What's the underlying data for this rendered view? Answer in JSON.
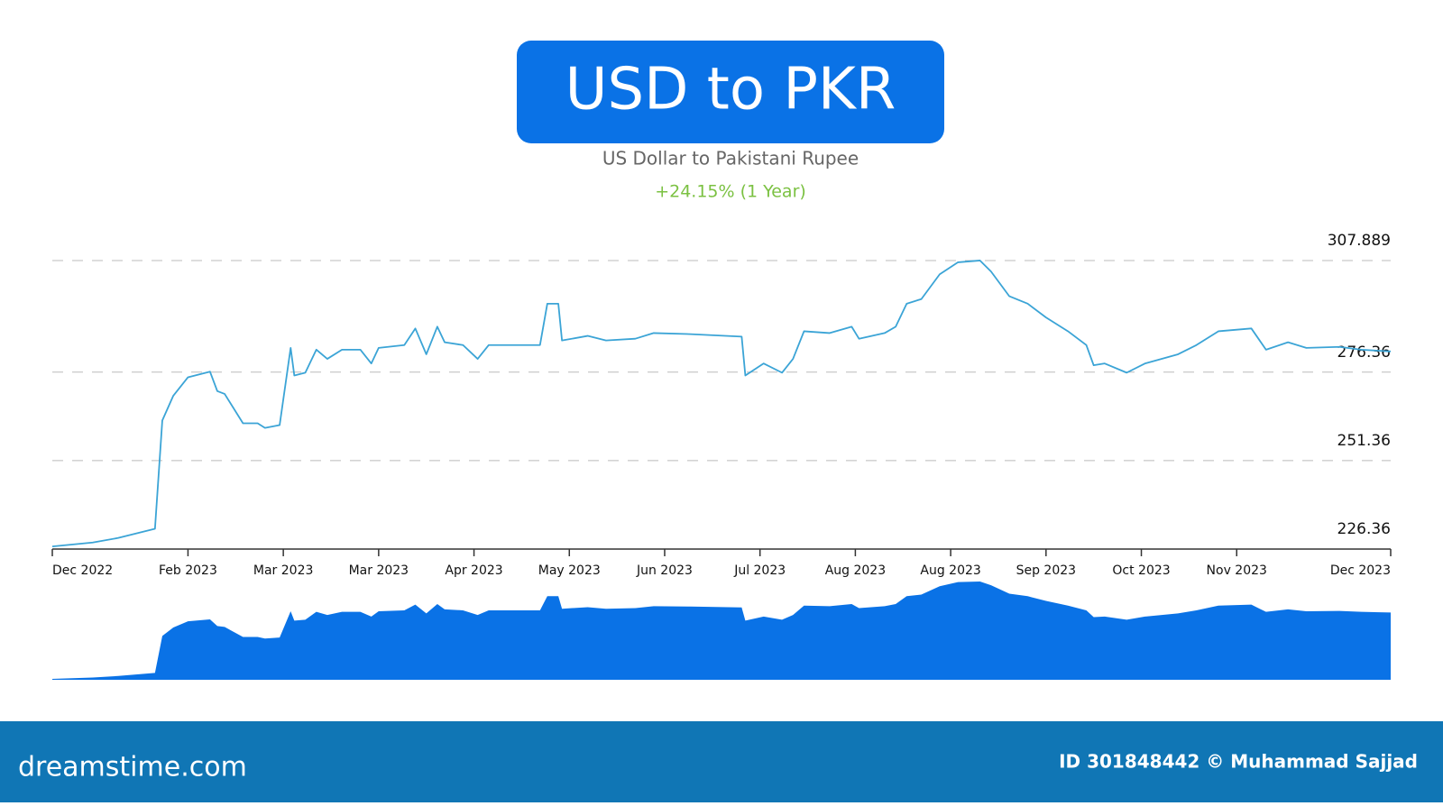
{
  "chart_data": {
    "type": "line",
    "title": "USD to PKR",
    "subtitle": "US Dollar to Pakistani Rupee",
    "change": "+24.15% (1 Year)",
    "color": "#3ba4d6",
    "navigator_color": "#0a72e6",
    "grid": true,
    "x": [
      0,
      11,
      18,
      28,
      30,
      33,
      37,
      43,
      45,
      47,
      52,
      56,
      58,
      62,
      65,
      66,
      69,
      72,
      75,
      79,
      84,
      87,
      89,
      96,
      99,
      102,
      105,
      107,
      112,
      116,
      119,
      133,
      135,
      138,
      139,
      146,
      151,
      159,
      164,
      174,
      188,
      189,
      194,
      199,
      202,
      205,
      212,
      218,
      220,
      227,
      230,
      233,
      237,
      242,
      247,
      253,
      256,
      261,
      266,
      271,
      277,
      282,
      284,
      287,
      293,
      298,
      307,
      312,
      318,
      327,
      331,
      337,
      342,
      351,
      357,
      365
    ],
    "values": [
      227.1,
      228.2,
      229.5,
      232.1,
      262.7,
      269.7,
      274.9,
      276.5,
      271.0,
      270.2,
      261.9,
      261.9,
      260.6,
      261.4,
      283.2,
      275.4,
      276.2,
      282.7,
      280.1,
      282.7,
      282.7,
      278.8,
      283.2,
      284.0,
      288.7,
      281.4,
      289.2,
      284.8,
      284.0,
      280.1,
      284.0,
      284.0,
      295.7,
      295.7,
      285.3,
      286.6,
      285.3,
      285.8,
      287.4,
      287.1,
      286.4,
      275.4,
      278.8,
      276.2,
      280.1,
      287.9,
      287.4,
      289.2,
      285.8,
      287.4,
      289.2,
      295.7,
      297.0,
      304.0,
      307.4,
      307.9,
      304.8,
      297.8,
      295.7,
      291.8,
      287.9,
      284.0,
      278.3,
      278.8,
      276.2,
      278.8,
      281.4,
      284.0,
      287.9,
      288.7,
      282.7,
      284.8,
      283.2,
      283.5,
      282.7,
      282.2
    ],
    "xlim": [
      0,
      365
    ],
    "xticks": [
      {
        "value": 0,
        "label": "Dec 2022"
      },
      {
        "value": 37,
        "label": "Feb 2023"
      },
      {
        "value": 63,
        "label": "Mar 2023"
      },
      {
        "value": 89,
        "label": "Mar 2023"
      },
      {
        "value": 115,
        "label": "Apr 2023"
      },
      {
        "value": 141,
        "label": "May 2023"
      },
      {
        "value": 167,
        "label": "Jun 2023"
      },
      {
        "value": 193,
        "label": "Jul 2023"
      },
      {
        "value": 219,
        "label": "Aug 2023"
      },
      {
        "value": 245,
        "label": "Aug 2023"
      },
      {
        "value": 271,
        "label": "Sep 2023"
      },
      {
        "value": 297,
        "label": "Oct 2023"
      },
      {
        "value": 323,
        "label": "Nov 2023"
      },
      {
        "value": 365,
        "label": "Dec 2023"
      }
    ],
    "ylim": [
      226.36,
      307.889
    ],
    "yticks": [
      226.36,
      251.36,
      276.36,
      307.889
    ]
  },
  "footer": {
    "logo": "dreamstime.com",
    "credit": "ID 301848442 © Muhammad Sajjad"
  }
}
